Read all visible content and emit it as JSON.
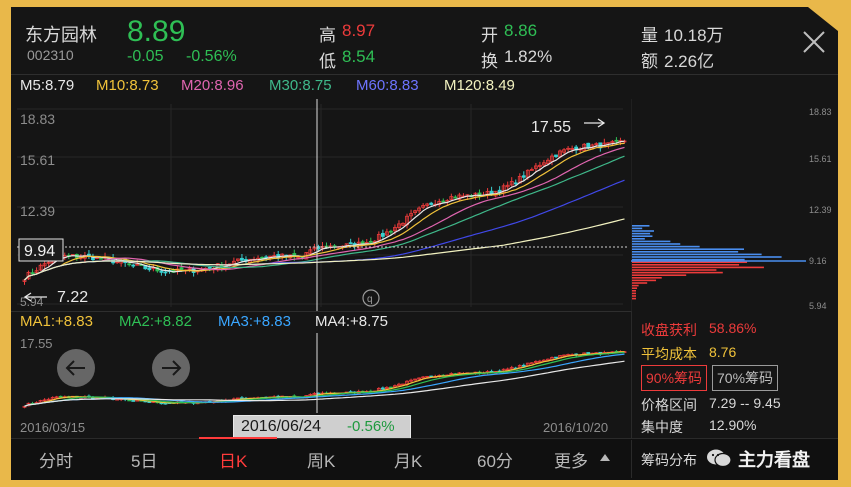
{
  "stock": {
    "name": "东方园林",
    "code": "002310",
    "price": "8.89",
    "change": "-0.05",
    "change_pct": "-0.56%",
    "high_label": "高",
    "high": "8.97",
    "low_label": "低",
    "low": "8.54",
    "open_label": "开",
    "open": "8.86",
    "turnover_label": "换",
    "turnover": "1.82%",
    "volume_label": "量",
    "volume": "10.18万",
    "amount_label": "额",
    "amount": "2.26亿"
  },
  "ma_legend": {
    "m5": "M5:8.79",
    "m10": "M10:8.73",
    "m20": "M20:8.96",
    "m30": "M30:8.75",
    "m60": "M60:8.83",
    "m120": "M120:8.49"
  },
  "main_chart": {
    "y_top": "18.83",
    "y_2": "15.61",
    "y_3": "12.39",
    "crosshair_price": "9.94",
    "y_bottom": "5.94",
    "high_marker": "17.55",
    "low_marker": "7.22",
    "q_badge": "q"
  },
  "chip_axis": {
    "t1": "18.83",
    "t2": "15.61",
    "t3": "12.39",
    "t4": "9.16",
    "t5": "5.94"
  },
  "ma2_legend": {
    "a1": "MA1:+8.83",
    "a2": "MA2:+8.82",
    "a3": "MA3:+8.83",
    "a4": "MA4:+8.75"
  },
  "sub_chart": {
    "y_top": "17.55",
    "date_left": "2016/03/15",
    "date_right": "2016/10/20",
    "cursor_date": "2016/06/24",
    "cursor_pct": "-0.56%"
  },
  "chip_panel": {
    "profit_label": "收盘获利",
    "profit": "58.86%",
    "cost_label": "平均成本",
    "cost": "8.76",
    "btn90": "90%筹码",
    "btn70": "70%筹码",
    "range_label": "价格区间",
    "range": "7.29 -- 9.45",
    "conc_label": "集中度",
    "conc": "12.90%"
  },
  "tabs": [
    "分时",
    "5日",
    "日K",
    "周K",
    "月K",
    "60分",
    "更多",
    "筹码分布"
  ],
  "watermark": "主力看盘",
  "colors": {
    "red": "#ec3b3b",
    "green": "#2fbf55",
    "m5": "#e8e8e8",
    "m10": "#f0c23a",
    "m20": "#e065b0",
    "m30": "#3fb88a",
    "m60": "#4048e8",
    "m120": "#f2f2c0"
  }
}
